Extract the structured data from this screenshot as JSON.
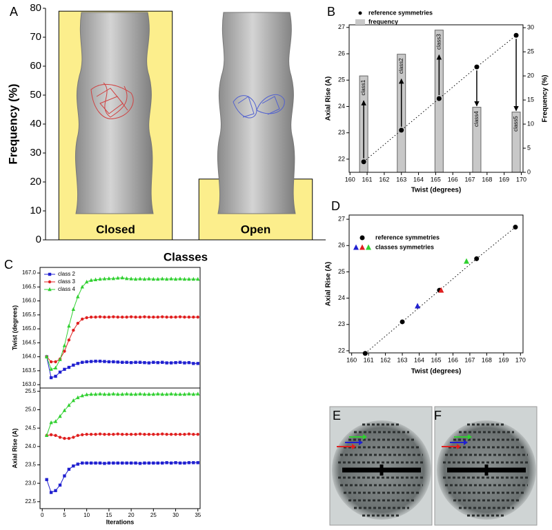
{
  "chart_data": [
    {
      "type": "bar",
      "label": "A",
      "x_label": "Classes",
      "y_label": "Frequency (%)",
      "categories": [
        "Closed",
        "Open"
      ],
      "values": [
        79,
        21
      ],
      "color": "#fcee8c",
      "ylim": [
        0,
        80
      ],
      "yticks": [
        0,
        10,
        20,
        30,
        40,
        50,
        60,
        70,
        80
      ]
    },
    {
      "type": "combo",
      "label": "B",
      "x_label": "Twist (degrees)",
      "y_label": "Axial Rise (A)",
      "y2_label": "Frequency (%)",
      "xlim": [
        159.95,
        170.1
      ],
      "ylim": [
        21.5,
        27.1
      ],
      "y2lim": [
        0,
        30.6
      ],
      "xticks": [
        160,
        161,
        162,
        163,
        164,
        165,
        166,
        167,
        168,
        169,
        170
      ],
      "yticks": [
        22,
        23,
        24,
        25,
        26,
        27
      ],
      "y2ticks": [
        0,
        5,
        10,
        15,
        20,
        25,
        30
      ],
      "legend": "top",
      "series": [
        {
          "name": "reference symmetries",
          "color": "#000000",
          "marker": "circle",
          "fit_line": "dotted",
          "x": [
            160.8,
            163.0,
            165.2,
            167.4,
            169.7
          ],
          "values": [
            21.9,
            23.1,
            24.3,
            25.5,
            26.7
          ]
        },
        {
          "name": "frequency",
          "color": "#c8c8c8",
          "axis": "y2",
          "categories": [
            "class1",
            "class2",
            "class3",
            "class4",
            "class5"
          ],
          "x": [
            160.8,
            163.0,
            165.2,
            167.4,
            169.7
          ],
          "values": [
            20,
            24.5,
            29.5,
            13.5,
            12.5
          ]
        }
      ]
    },
    {
      "type": "line",
      "label": "C",
      "y_label": "Twist (degrees)",
      "legend": "upper left",
      "x": [
        1,
        2,
        3,
        4,
        5,
        6,
        7,
        8,
        9,
        10,
        11,
        12,
        13,
        14,
        15,
        16,
        17,
        18,
        19,
        20,
        21,
        22,
        23,
        24,
        25,
        26,
        27,
        28,
        29,
        30,
        31,
        32,
        33,
        34,
        35
      ],
      "xlim": [
        -0.5,
        35.5
      ],
      "ylim": [
        162.88,
        167.2
      ],
      "yticks": [
        {
          "value": 163,
          "label": "163.0"
        },
        163.5,
        {
          "value": 164,
          "label": "164.0"
        },
        164.5,
        {
          "value": 165,
          "label": "165.0"
        },
        165.5,
        {
          "value": 166,
          "label": "166.0"
        },
        166.5,
        {
          "value": 167,
          "label": "167.0"
        }
      ],
      "series": [
        {
          "name": "class 2",
          "color": "#2020d0",
          "marker": "square",
          "values": [
            164.0,
            163.25,
            163.3,
            163.45,
            163.55,
            163.62,
            163.7,
            163.76,
            163.8,
            163.82,
            163.83,
            163.84,
            163.84,
            163.83,
            163.82,
            163.82,
            163.81,
            163.8,
            163.8,
            163.79,
            163.8,
            163.8,
            163.79,
            163.78,
            163.8,
            163.79,
            163.8,
            163.78,
            163.78,
            163.79,
            163.8,
            163.78,
            163.79,
            163.76,
            163.76
          ]
        },
        {
          "name": "class 3",
          "color": "#e02020",
          "marker": "circle",
          "values": [
            164.0,
            163.82,
            163.82,
            163.92,
            164.2,
            164.6,
            164.95,
            165.2,
            165.35,
            165.4,
            165.42,
            165.42,
            165.43,
            165.42,
            165.42,
            165.43,
            165.42,
            165.42,
            165.42,
            165.43,
            165.42,
            165.42,
            165.43,
            165.42,
            165.42,
            165.42,
            165.43,
            165.42,
            165.42,
            165.42,
            165.43,
            165.42,
            165.42,
            165.42,
            165.42
          ]
        },
        {
          "name": "class 4",
          "color": "#30d030",
          "marker": "triangle",
          "values": [
            164.0,
            163.55,
            163.6,
            163.9,
            164.4,
            165.1,
            165.7,
            166.15,
            166.5,
            166.68,
            166.74,
            166.76,
            166.78,
            166.79,
            166.8,
            166.8,
            166.82,
            166.83,
            166.8,
            166.79,
            166.78,
            166.79,
            166.78,
            166.79,
            166.78,
            166.78,
            166.79,
            166.78,
            166.79,
            166.78,
            166.79,
            166.78,
            166.78,
            166.78,
            166.78
          ]
        }
      ]
    },
    {
      "type": "line",
      "x_label": "Iterations",
      "y_label": "Axial Rise (A)",
      "x": [
        1,
        2,
        3,
        4,
        5,
        6,
        7,
        8,
        9,
        10,
        11,
        12,
        13,
        14,
        15,
        16,
        17,
        18,
        19,
        20,
        21,
        22,
        23,
        24,
        25,
        26,
        27,
        28,
        29,
        30,
        31,
        32,
        33,
        34,
        35
      ],
      "xlim": [
        -0.5,
        35.5
      ],
      "ylim": [
        22.31,
        25.59
      ],
      "xticks": [
        0,
        5,
        10,
        15,
        20,
        25,
        30,
        35
      ],
      "yticks": [
        22.5,
        {
          "value": 23,
          "label": "23.0"
        },
        23.5,
        {
          "value": 24,
          "label": "24.0"
        },
        24.5,
        {
          "value": 25,
          "label": "25.0"
        },
        25.5
      ],
      "series": [
        {
          "color": "#2020d0",
          "marker": "square",
          "values": [
            23.1,
            22.75,
            22.8,
            22.95,
            23.2,
            23.38,
            23.47,
            23.52,
            23.55,
            23.55,
            23.55,
            23.55,
            23.55,
            23.54,
            23.55,
            23.55,
            23.55,
            23.55,
            23.55,
            23.55,
            23.55,
            23.54,
            23.55,
            23.55,
            23.55,
            23.55,
            23.55,
            23.56,
            23.55,
            23.56,
            23.55,
            23.55,
            23.56,
            23.56,
            23.56
          ]
        },
        {
          "color": "#e02020",
          "marker": "circle",
          "values": [
            24.3,
            24.32,
            24.3,
            24.25,
            24.22,
            24.22,
            24.25,
            24.3,
            24.32,
            24.33,
            24.33,
            24.33,
            24.34,
            24.33,
            24.33,
            24.33,
            24.34,
            24.33,
            24.33,
            24.33,
            24.33,
            24.34,
            24.33,
            24.33,
            24.33,
            24.33,
            24.34,
            24.33,
            24.33,
            24.33,
            24.33,
            24.33,
            24.34,
            24.33,
            24.33
          ]
        },
        {
          "color": "#30d030",
          "marker": "triangle",
          "values": [
            24.3,
            24.65,
            24.68,
            24.82,
            24.98,
            25.12,
            25.25,
            25.33,
            25.38,
            25.41,
            25.42,
            25.42,
            25.43,
            25.42,
            25.42,
            25.43,
            25.42,
            25.42,
            25.43,
            25.42,
            25.42,
            25.43,
            25.42,
            25.42,
            25.42,
            25.43,
            25.42,
            25.42,
            25.43,
            25.42,
            25.42,
            25.42,
            25.43,
            25.42,
            25.43
          ]
        }
      ]
    },
    {
      "type": "scatter",
      "label": "D",
      "x_label": "Twist (degrees)",
      "y_label": "Axial Rise (A)",
      "legend": "upper left",
      "xlim": [
        159.85,
        170.15
      ],
      "ylim": [
        21.92,
        27.16
      ],
      "xticks": [
        160,
        161,
        162,
        163,
        164,
        165,
        166,
        167,
        168,
        169,
        170
      ],
      "yticks": [
        22,
        23,
        24,
        25,
        26,
        27
      ],
      "series": [
        {
          "name": "reference symmetries",
          "color": "#000000",
          "marker": "circle",
          "fit_line": "dotted",
          "x": [
            160.8,
            163.0,
            165.2,
            167.4,
            169.7
          ],
          "values": [
            21.9,
            23.1,
            24.3,
            25.5,
            26.7
          ]
        },
        {
          "name": "classes symmetries",
          "colors": [
            "#2020d0",
            "#e02020",
            "#30d030"
          ],
          "marker": "triangle",
          "x": [
            163.9,
            165.3,
            166.8
          ],
          "values": [
            23.7,
            24.3,
            25.4
          ]
        }
      ]
    }
  ],
  "images": [
    {
      "label": "E"
    },
    {
      "label": "F"
    }
  ]
}
